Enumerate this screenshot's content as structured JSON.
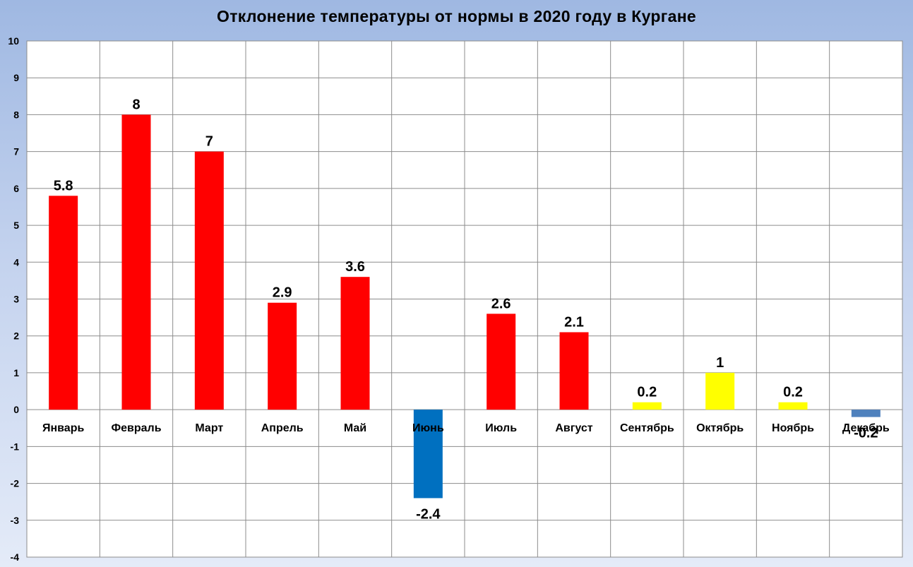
{
  "chart_data": {
    "type": "bar",
    "title": "Отклонение температуры от нормы в 2020 году в Кургане",
    "xlabel": "",
    "ylabel": "",
    "ylim": [
      -4,
      10
    ],
    "yticks": [
      10,
      9,
      8,
      7,
      6,
      5,
      4,
      3,
      2,
      1,
      0,
      -1,
      -2,
      -3,
      -4
    ],
    "grid": true,
    "categories": [
      "Январь",
      "Февраль",
      "Март",
      "Апрель",
      "Май",
      "Июнь",
      "Июль",
      "Август",
      "Сентябрь",
      "Октябрь",
      "Ноябрь",
      "Декабрь"
    ],
    "values": [
      5.8,
      8,
      7,
      2.9,
      3.6,
      -2.4,
      2.6,
      2.1,
      0.2,
      1,
      0.2,
      -0.2
    ],
    "data_labels": [
      "5.8",
      "8",
      "7",
      "2.9",
      "3.6",
      "-2.4",
      "2.6",
      "2.1",
      "0.2",
      "1",
      "0.2",
      "-0.2"
    ],
    "bar_colors": [
      "#ff0000",
      "#ff0000",
      "#ff0000",
      "#ff0000",
      "#ff0000",
      "#0070c0",
      "#ff0000",
      "#ff0000",
      "#ffff00",
      "#ffff00",
      "#ffff00",
      "#4f81bd"
    ]
  }
}
